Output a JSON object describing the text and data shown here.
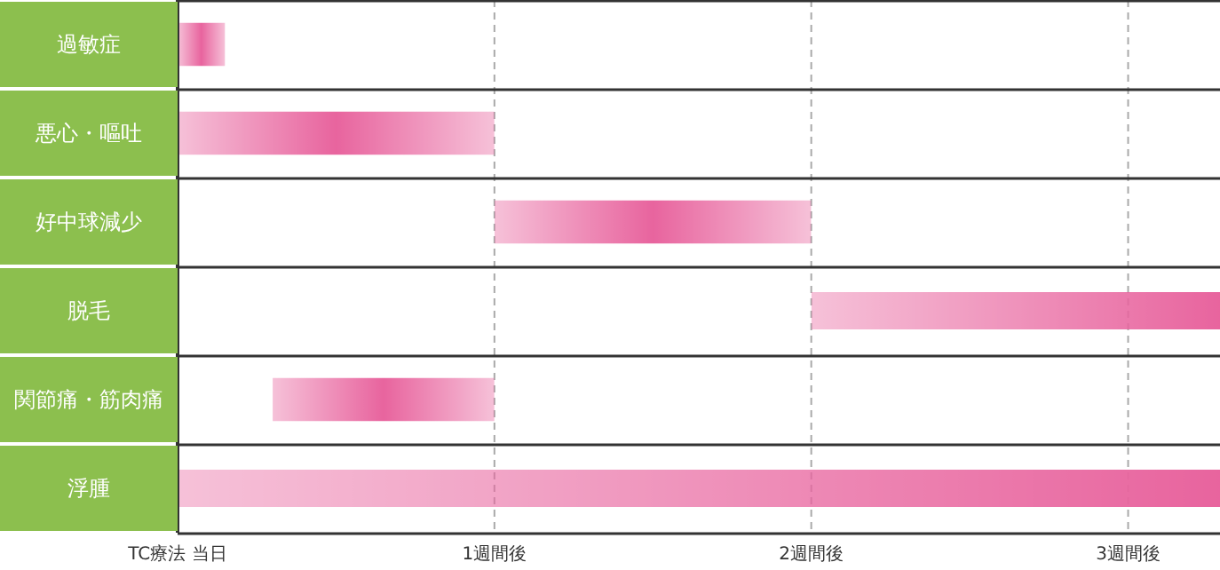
{
  "chart_data": {
    "type": "bar",
    "orientation": "horizontal",
    "categories": [
      "過敏症",
      "悪心・嘔吐",
      "好中球減少",
      "脱毛",
      "関節痛・筋肉痛",
      "浮腫"
    ],
    "base": [
      0,
      0,
      1,
      2,
      0.3,
      0
    ],
    "values": [
      0.15,
      1,
      1,
      1.29,
      0.7,
      3.29
    ],
    "color": "#e8649e",
    "xlim": [
      0,
      3.29
    ],
    "xticks": [
      {
        "value": 0,
        "label": "TC療法 当日"
      },
      {
        "value": 1,
        "label": "1週間後"
      },
      {
        "value": 2,
        "label": "2週間後"
      },
      {
        "value": 3,
        "label": "3週間後"
      }
    ],
    "grid": "x",
    "legend": false
  }
}
